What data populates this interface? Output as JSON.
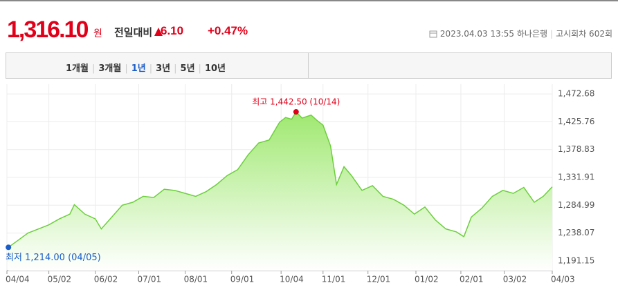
{
  "header": {
    "price": "1,316.10",
    "unit": "원",
    "label": "전일대비",
    "change": "6.10",
    "percent": "+0.47%",
    "datetime": "2023.04.03 13:55",
    "bank": "하나은행",
    "round": "고시회차 602회"
  },
  "tabs": {
    "items": [
      "1개월",
      "3개월",
      "1년",
      "3년",
      "5년",
      "10년"
    ],
    "selected": 2
  },
  "chart_data": {
    "type": "area",
    "color": "#6ccf3c",
    "max_label": "최고 1,442.50 (10/14)",
    "min_label": "최저 1,214.00 (04/05)",
    "x": [
      1,
      7,
      14,
      21,
      28,
      35,
      42,
      45,
      52,
      59,
      63,
      70,
      77,
      84,
      91,
      98,
      105,
      112,
      119,
      126,
      133,
      140,
      147,
      154,
      161,
      168,
      175,
      182,
      186,
      190,
      193,
      197,
      203,
      207,
      211,
      216,
      220,
      225,
      230,
      237,
      244,
      251,
      258,
      265,
      272,
      279,
      286,
      293,
      300,
      305,
      310,
      317,
      324,
      331,
      338,
      345,
      352,
      358,
      364
    ],
    "values": [
      1214.0,
      1225,
      1238,
      1245,
      1252,
      1262,
      1270,
      1286,
      1270,
      1262,
      1245,
      1265,
      1285,
      1290,
      1300,
      1298,
      1312,
      1310,
      1305,
      1300,
      1308,
      1320,
      1335,
      1345,
      1370,
      1390,
      1395,
      1425,
      1433,
      1430,
      1442.5,
      1432,
      1437,
      1428,
      1420,
      1385,
      1320,
      1350,
      1335,
      1310,
      1318,
      1300,
      1295,
      1285,
      1270,
      1282,
      1260,
      1245,
      1240,
      1232,
      1265,
      1280,
      1300,
      1310,
      1305,
      1315,
      1290,
      1300,
      1316.1
    ],
    "max_index": 30,
    "min_index": 0,
    "xlim": [
      0,
      364
    ],
    "ylim": [
      1174.73,
      1489.1
    ],
    "xticks": [
      {
        "value": 0,
        "label": "04/04"
      },
      {
        "value": 28,
        "label": "05/02"
      },
      {
        "value": 59,
        "label": "06/02"
      },
      {
        "value": 88,
        "label": "07/01"
      },
      {
        "value": 119,
        "label": "08/01"
      },
      {
        "value": 150,
        "label": "09/01"
      },
      {
        "value": 183,
        "label": "10/04"
      },
      {
        "value": 211,
        "label": "11/01"
      },
      {
        "value": 241,
        "label": "12/01"
      },
      {
        "value": 273,
        "label": "01/02"
      },
      {
        "value": 303,
        "label": "02/01"
      },
      {
        "value": 332,
        "label": "03/02"
      },
      {
        "value": 364,
        "label": "04/03"
      }
    ],
    "yticks": [
      {
        "value": 1191.15,
        "label": "1,191.15"
      },
      {
        "value": 1238.07,
        "label": "1,238.07"
      },
      {
        "value": 1284.99,
        "label": "1,284.99"
      },
      {
        "value": 1331.91,
        "label": "1,331.91"
      },
      {
        "value": 1378.83,
        "label": "1,378.83"
      },
      {
        "value": 1425.76,
        "label": "1,425.76"
      },
      {
        "value": 1472.68,
        "label": "1,472.68"
      }
    ],
    "grid": true
  }
}
